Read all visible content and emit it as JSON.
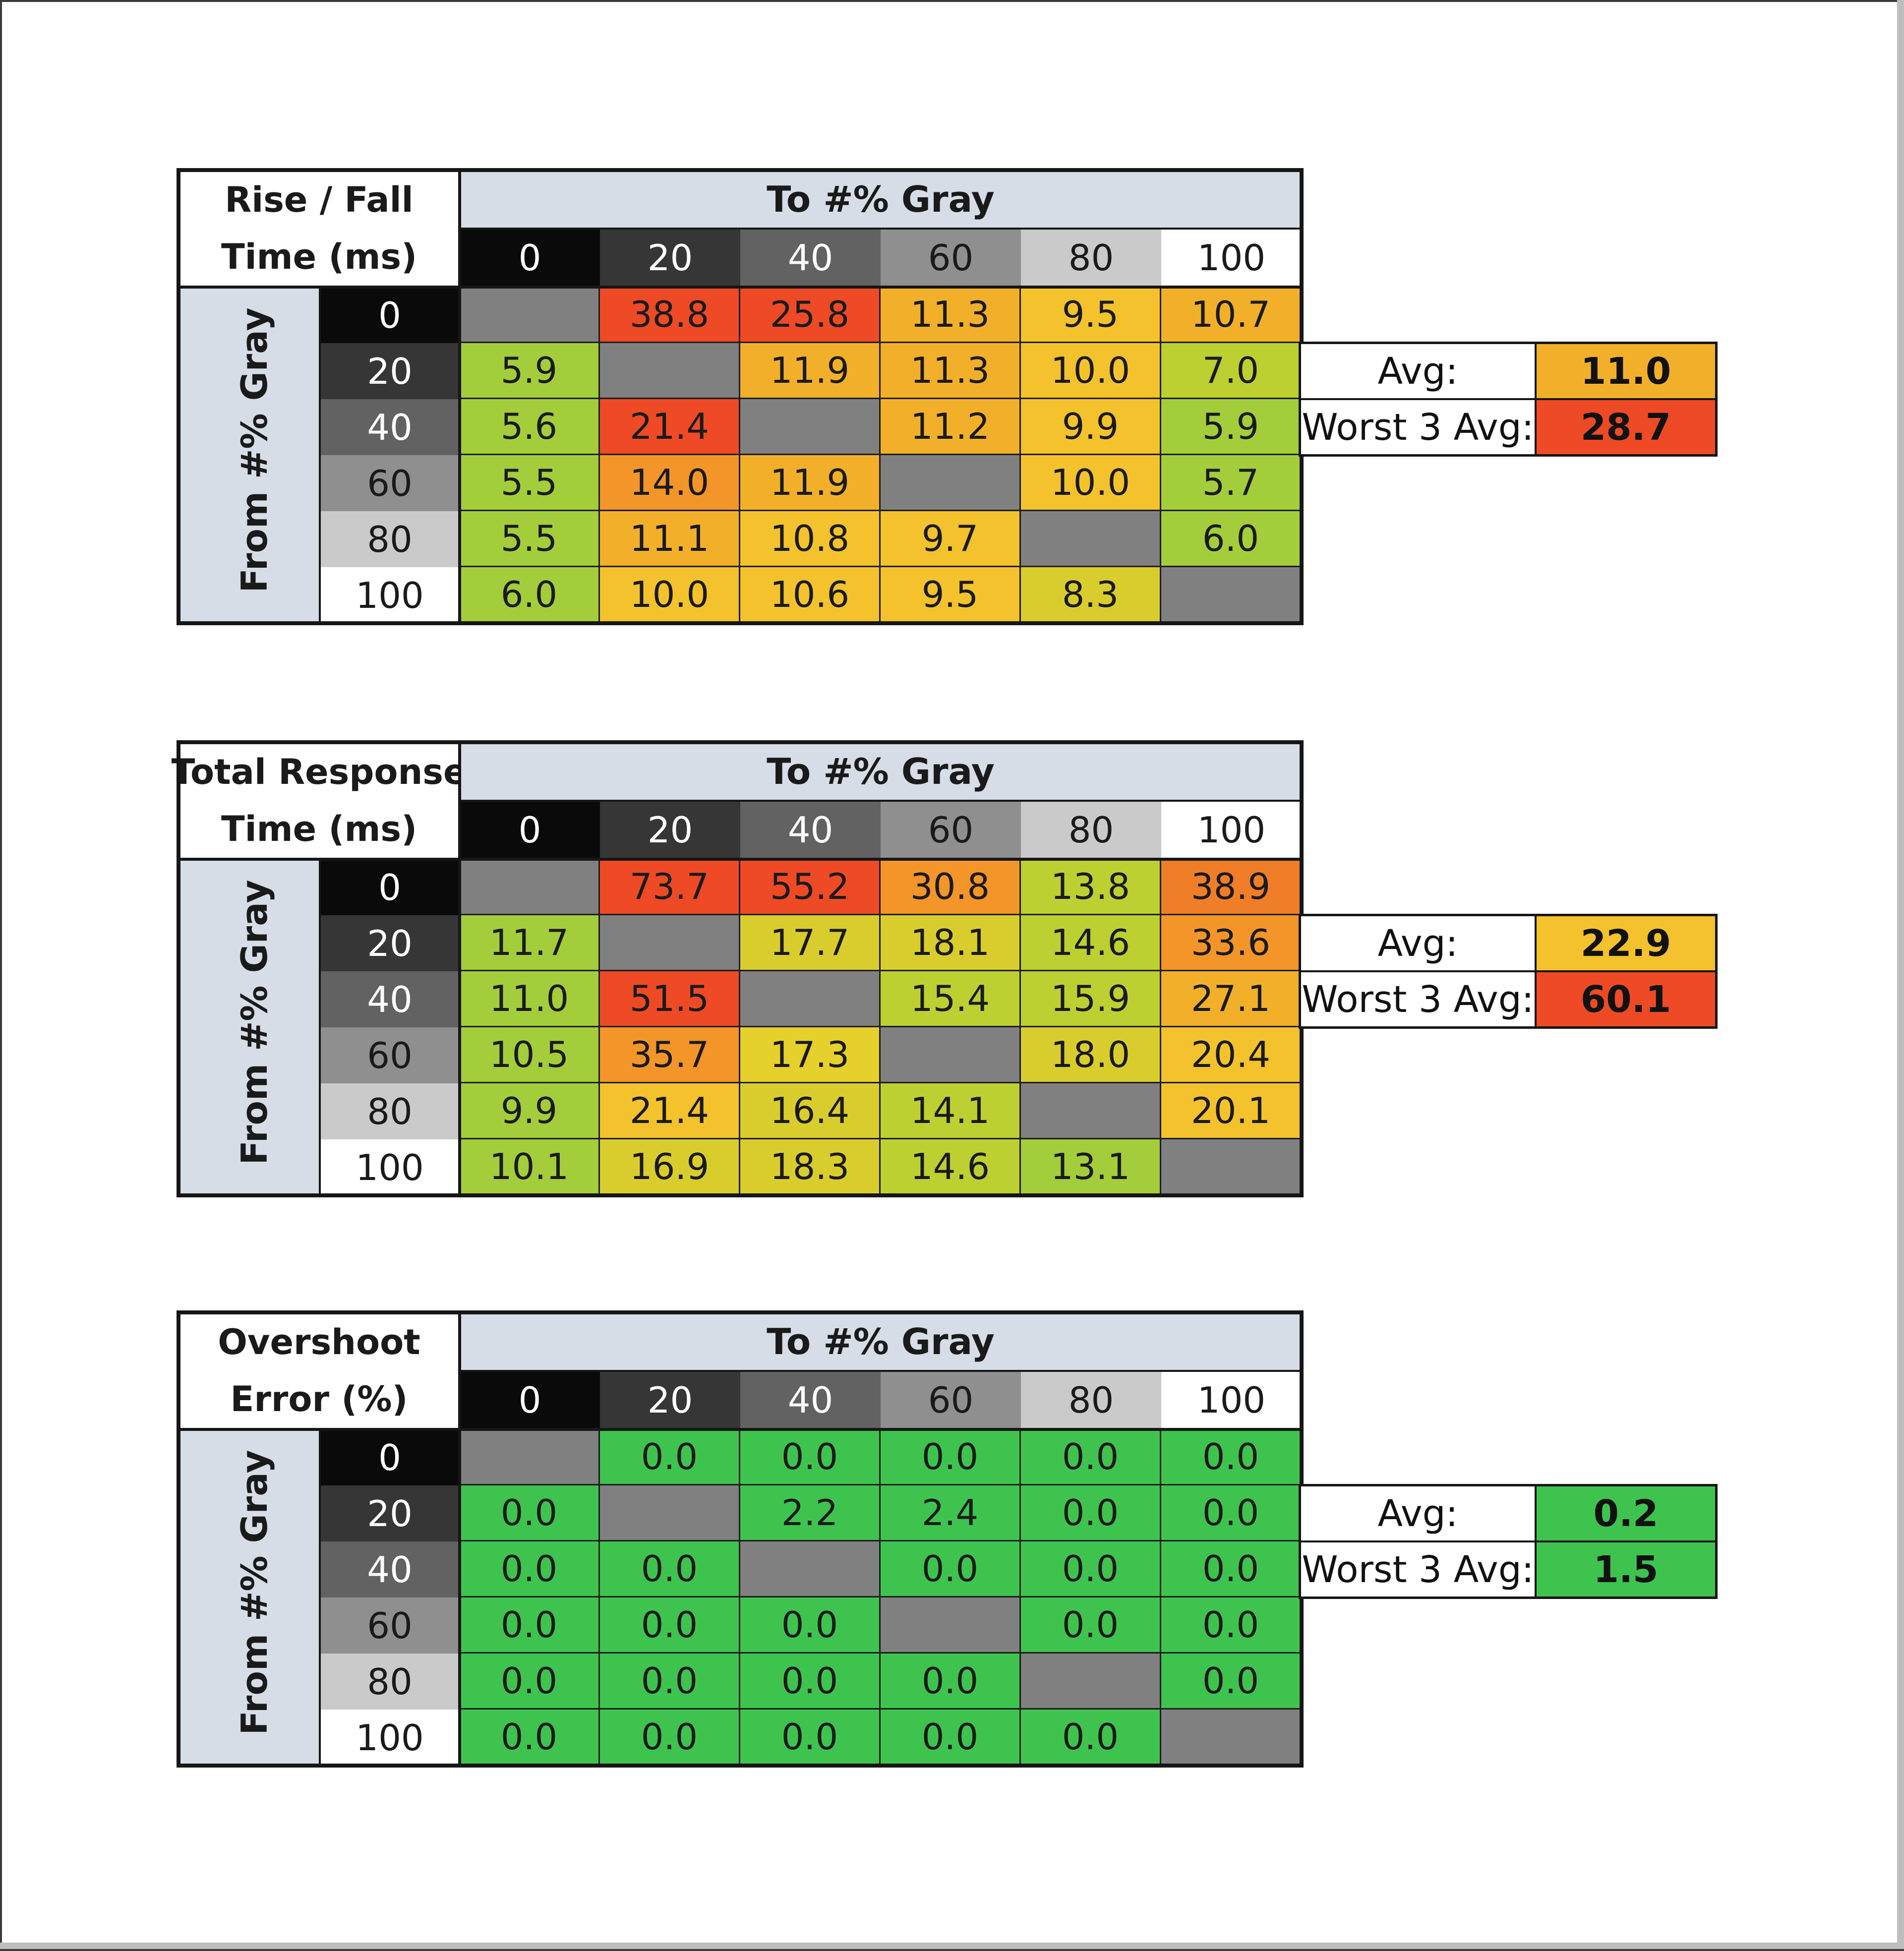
{
  "chart_data": [
    {
      "type": "heatmap",
      "title_lines": [
        "Rise / Fall",
        "Time (ms)"
      ],
      "column_axis_label": "To #% Gray",
      "row_axis_label": "From #% Gray",
      "categories": [
        "0",
        "20",
        "40",
        "60",
        "80",
        "100"
      ],
      "rows": [
        "0",
        "20",
        "40",
        "60",
        "80",
        "100"
      ],
      "values": [
        [
          null,
          "38.8",
          "25.8",
          "11.3",
          "9.5",
          "10.7"
        ],
        [
          "5.9",
          null,
          "11.9",
          "11.3",
          "10.0",
          "7.0"
        ],
        [
          "5.6",
          "21.4",
          null,
          "11.2",
          "9.9",
          "5.9"
        ],
        [
          "5.5",
          "14.0",
          "11.9",
          null,
          "10.0",
          "5.7"
        ],
        [
          "5.5",
          "11.1",
          "10.8",
          "9.7",
          null,
          "6.0"
        ],
        [
          "6.0",
          "10.0",
          "10.6",
          "9.5",
          "8.3",
          null
        ]
      ],
      "colors": [
        [
          "#808080",
          "#ee4a25",
          "#ee4a25",
          "#f2b02a",
          "#f3c22c",
          "#f2b02a"
        ],
        [
          "#a3cd3b",
          "#808080",
          "#f2b02a",
          "#f2b02a",
          "#f3c22c",
          "#bcd032"
        ],
        [
          "#a3cd3b",
          "#ee4a25",
          "#808080",
          "#f2b02a",
          "#f3c22c",
          "#a3cd3b"
        ],
        [
          "#a3cd3b",
          "#f39529",
          "#f2b02a",
          "#808080",
          "#f3c22c",
          "#a3cd3b"
        ],
        [
          "#a3cd3b",
          "#f2b02a",
          "#f3c22c",
          "#f3c22c",
          "#808080",
          "#a3cd3b"
        ],
        [
          "#a3cd3b",
          "#f3c22c",
          "#f3c22c",
          "#f3c22c",
          "#d9cd2e",
          "#808080"
        ]
      ],
      "stats": {
        "avg_label": "Avg:",
        "avg_value": "11.0",
        "avg_color": "#f2b02a",
        "worst_label": "Worst 3 Avg:",
        "worst_value": "28.7",
        "worst_color": "#ee4a25"
      }
    },
    {
      "type": "heatmap",
      "title_lines": [
        "Total Response",
        "Time (ms)"
      ],
      "column_axis_label": "To #% Gray",
      "row_axis_label": "From #% Gray",
      "categories": [
        "0",
        "20",
        "40",
        "60",
        "80",
        "100"
      ],
      "rows": [
        "0",
        "20",
        "40",
        "60",
        "80",
        "100"
      ],
      "values": [
        [
          null,
          "73.7",
          "55.2",
          "30.8",
          "13.8",
          "38.9"
        ],
        [
          "11.7",
          null,
          "17.7",
          "18.1",
          "14.6",
          "33.6"
        ],
        [
          "11.0",
          "51.5",
          null,
          "15.4",
          "15.9",
          "27.1"
        ],
        [
          "10.5",
          "35.7",
          "17.3",
          null,
          "18.0",
          "20.4"
        ],
        [
          "9.9",
          "21.4",
          "16.4",
          "14.1",
          null,
          "20.1"
        ],
        [
          "10.1",
          "16.9",
          "18.3",
          "14.6",
          "13.1",
          null
        ]
      ],
      "colors": [
        [
          "#808080",
          "#ee4a25",
          "#ee4a25",
          "#f39529",
          "#bcd032",
          "#f07e28"
        ],
        [
          "#a3cd3b",
          "#808080",
          "#d9cd2e",
          "#d9cd2e",
          "#bcd032",
          "#f39529"
        ],
        [
          "#a3cd3b",
          "#ee4a25",
          "#808080",
          "#bcd032",
          "#bcd032",
          "#f2b02a"
        ],
        [
          "#a3cd3b",
          "#f39529",
          "#e6d02c",
          "#808080",
          "#d9cd2e",
          "#f3c22c"
        ],
        [
          "#a3cd3b",
          "#f3c22c",
          "#d9cd2e",
          "#bcd032",
          "#808080",
          "#f3c22c"
        ],
        [
          "#a3cd3b",
          "#d9cd2e",
          "#d9cd2e",
          "#bcd032",
          "#a3cd3b",
          "#808080"
        ]
      ],
      "stats": {
        "avg_label": "Avg:",
        "avg_value": "22.9",
        "avg_color": "#f3c22c",
        "worst_label": "Worst 3 Avg:",
        "worst_value": "60.1",
        "worst_color": "#ee4a25"
      }
    },
    {
      "type": "heatmap",
      "title_lines": [
        "Overshoot",
        "Error (%)"
      ],
      "column_axis_label": "To #% Gray",
      "row_axis_label": "From #% Gray",
      "categories": [
        "0",
        "20",
        "40",
        "60",
        "80",
        "100"
      ],
      "rows": [
        "0",
        "20",
        "40",
        "60",
        "80",
        "100"
      ],
      "values": [
        [
          null,
          "0.0",
          "0.0",
          "0.0",
          "0.0",
          "0.0"
        ],
        [
          "0.0",
          null,
          "2.2",
          "2.4",
          "0.0",
          "0.0"
        ],
        [
          "0.0",
          "0.0",
          null,
          "0.0",
          "0.0",
          "0.0"
        ],
        [
          "0.0",
          "0.0",
          "0.0",
          null,
          "0.0",
          "0.0"
        ],
        [
          "0.0",
          "0.0",
          "0.0",
          "0.0",
          null,
          "0.0"
        ],
        [
          "0.0",
          "0.0",
          "0.0",
          "0.0",
          "0.0",
          null
        ]
      ],
      "colors": [
        [
          "#808080",
          "#3ec44e",
          "#3ec44e",
          "#3ec44e",
          "#3ec44e",
          "#3ec44e"
        ],
        [
          "#3ec44e",
          "#808080",
          "#3ec44e",
          "#3ec44e",
          "#3ec44e",
          "#3ec44e"
        ],
        [
          "#3ec44e",
          "#3ec44e",
          "#808080",
          "#3ec44e",
          "#3ec44e",
          "#3ec44e"
        ],
        [
          "#3ec44e",
          "#3ec44e",
          "#3ec44e",
          "#808080",
          "#3ec44e",
          "#3ec44e"
        ],
        [
          "#3ec44e",
          "#3ec44e",
          "#3ec44e",
          "#3ec44e",
          "#808080",
          "#3ec44e"
        ],
        [
          "#3ec44e",
          "#3ec44e",
          "#3ec44e",
          "#3ec44e",
          "#3ec44e",
          "#808080"
        ]
      ],
      "stats": {
        "avg_label": "Avg:",
        "avg_value": "0.2",
        "avg_color": "#3ec44e",
        "worst_label": "Worst 3 Avg:",
        "worst_value": "1.5",
        "worst_color": "#3ec44e"
      }
    }
  ],
  "gray_level_colors": {
    "0": "#0a0a0a",
    "20": "#363636",
    "40": "#626262",
    "60": "#8f8f8f",
    "80": "#cacaca",
    "100": "#ffffff"
  }
}
